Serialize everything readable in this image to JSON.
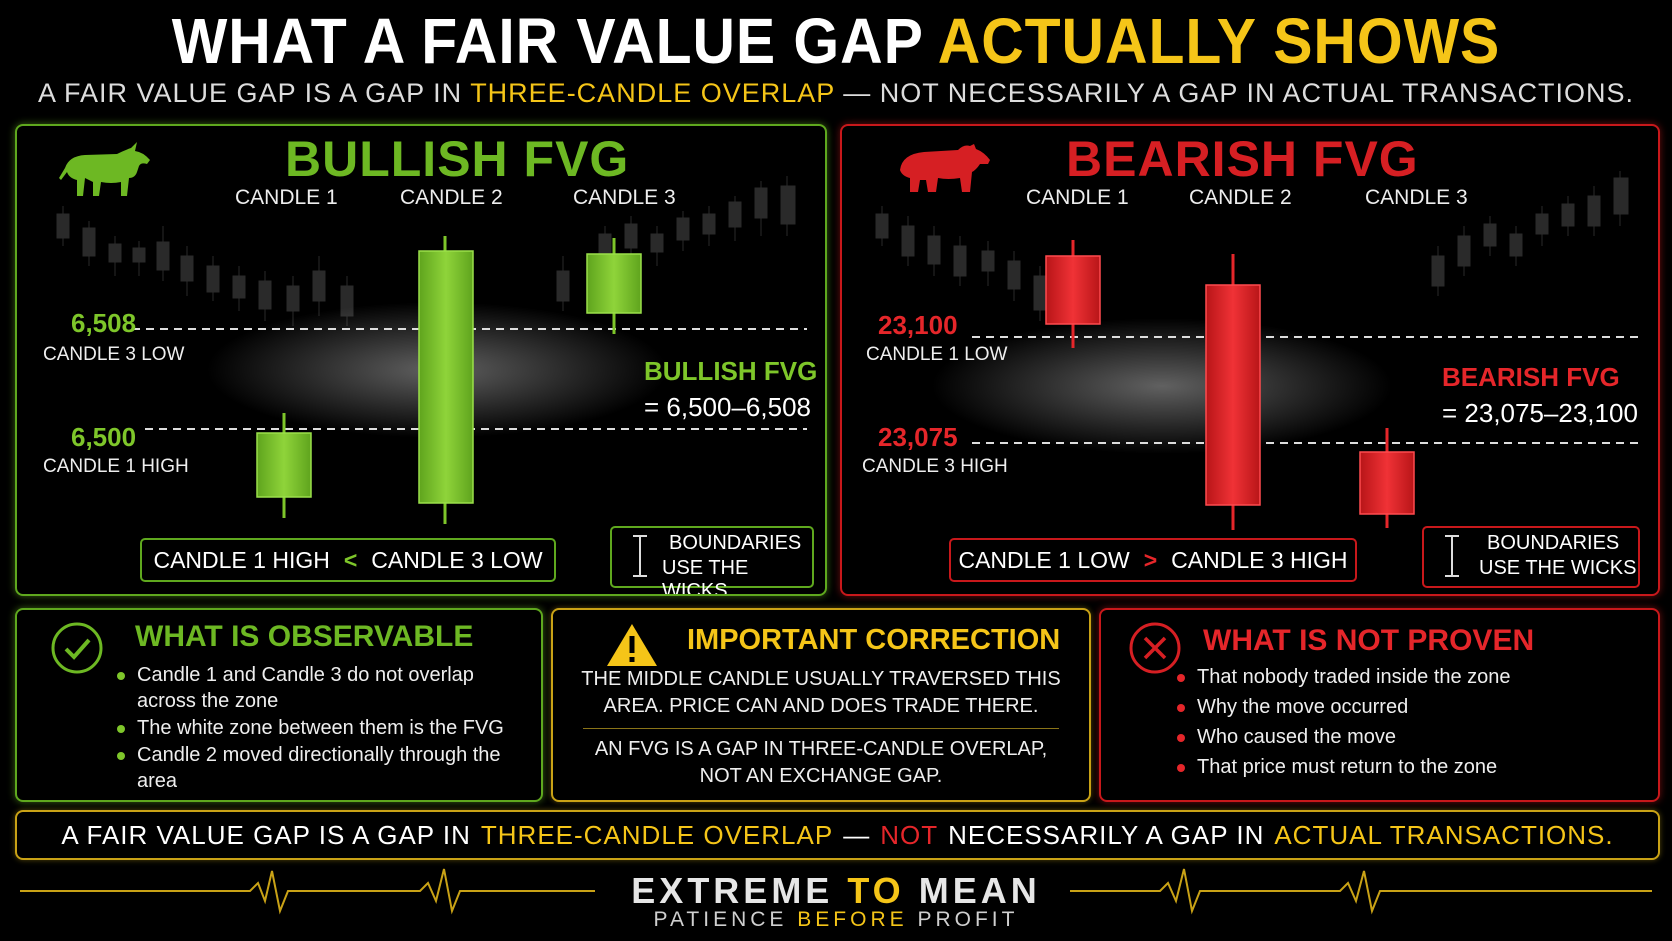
{
  "title": {
    "part1": "WHAT A FAIR VALUE GAP",
    "part2": "ACTUALLY SHOWS"
  },
  "subtitle": {
    "part1": "A FAIR VALUE GAP IS A GAP IN",
    "highlight": "THREE-CANDLE OVERLAP",
    "part2": "— NOT NECESSARILY A GAP IN ACTUAL TRANSACTIONS."
  },
  "bullish": {
    "heading": "BULLISH FVG",
    "candle1": "CANDLE 1",
    "candle2": "CANDLE 2",
    "candle3": "CANDLE 3",
    "upper_price": "6,508",
    "upper_label": "CANDLE 3 LOW",
    "lower_price": "6,500",
    "lower_label": "CANDLE 1 HIGH",
    "zone_title": "BULLISH FVG",
    "zone_range": "= 6,500–6,508",
    "rule_left": "CANDLE 1 HIGH",
    "rule_op": "<",
    "rule_right": "CANDLE 3 LOW",
    "wicks_line1": "BOUNDARIES",
    "wicks_line2": "USE THE WICKS"
  },
  "bearish": {
    "heading": "BEARISH FVG",
    "candle1": "CANDLE 1",
    "candle2": "CANDLE 2",
    "candle3": "CANDLE 3",
    "upper_price": "23,100",
    "upper_label": "CANDLE 1 LOW",
    "lower_price": "23,075",
    "lower_label": "CANDLE 3 HIGH",
    "zone_title": "BEARISH FVG",
    "zone_range": "= 23,075–23,100",
    "rule_left": "CANDLE 1 LOW",
    "rule_op": ">",
    "rule_right": "CANDLE 3 HIGH",
    "wicks_line1": "BOUNDARIES",
    "wicks_line2": "USE THE WICKS"
  },
  "observable": {
    "heading": "WHAT IS OBSERVABLE",
    "items": [
      "Candle 1 and Candle 3 do not overlap across the zone",
      "The white zone between them is the FVG",
      "Candle 2 moved directionally through the area"
    ]
  },
  "correction": {
    "heading": "IMPORTANT CORRECTION",
    "text1": "THE MIDDLE CANDLE USUALLY TRAVERSED THIS AREA. PRICE CAN AND DOES TRADE THERE.",
    "text2": "AN FVG IS A GAP IN THREE-CANDLE OVERLAP, NOT AN EXCHANGE GAP."
  },
  "not_proven": {
    "heading": "WHAT IS NOT PROVEN",
    "items": [
      "That nobody traded inside the zone",
      "Why the move occurred",
      "Who caused the move",
      "That price must return to the zone"
    ]
  },
  "footer_banner": {
    "p1": "A FAIR VALUE GAP IS A GAP IN",
    "h1": "THREE-CANDLE OVERLAP",
    "p2": "—",
    "h2": "NOT",
    "p3": "NECESSARILY A GAP IN",
    "h3": "ACTUAL TRANSACTIONS."
  },
  "brand": {
    "w1": "EXTREME",
    "w2": "TO",
    "w3": "MEAN",
    "t1": "PATIENCE",
    "t2": "BEFORE",
    "t3": "PROFIT"
  },
  "colors": {
    "green": "#7ec62a",
    "red": "#e5262a",
    "yellow": "#f5c518"
  },
  "icons": [
    "bull-icon",
    "bear-icon",
    "check-circle-icon",
    "warning-triangle-icon",
    "x-circle-icon",
    "wick-i-beam-icon",
    "heartbeat-line-icon"
  ]
}
